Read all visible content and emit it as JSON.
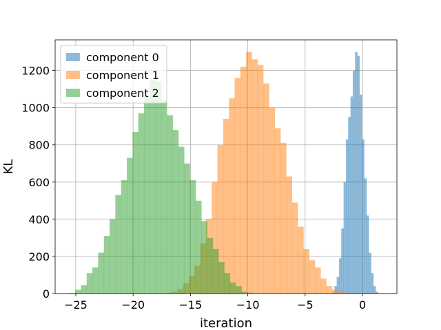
{
  "chart_data": {
    "type": "histogram",
    "title": "",
    "xlabel": "iteration",
    "ylabel": "KL",
    "xlim": [
      -26.8,
      3.0
    ],
    "ylim": [
      0,
      1365
    ],
    "xticks": [
      -25,
      -20,
      -15,
      -10,
      -5,
      0
    ],
    "xtick_labels": [
      "−25",
      "−20",
      "−15",
      "−10",
      "−5",
      "0"
    ],
    "yticks": [
      0,
      200,
      400,
      600,
      800,
      1000,
      1200
    ],
    "ytick_labels": [
      "0",
      "200",
      "400",
      "600",
      "800",
      "1000",
      "1200"
    ],
    "grid": true,
    "legend_position": "top-left",
    "series": [
      {
        "name": "component 0",
        "color": "#1f77b4",
        "bin_start": -2.65,
        "bin_width": 0.2,
        "counts": [
          5,
          40,
          90,
          190,
          350,
          600,
          830,
          950,
          1060,
          1200,
          1300,
          1280,
          1070,
          830,
          620,
          420,
          220,
          110,
          40,
          10
        ]
      },
      {
        "name": "component 1",
        "color": "#ff7f0e",
        "bin_start": -17.15,
        "bin_width": 0.5,
        "counts": [
          5,
          10,
          25,
          55,
          95,
          150,
          270,
          400,
          600,
          800,
          940,
          1050,
          1160,
          1220,
          1300,
          1260,
          1230,
          1130,
          1000,
          890,
          810,
          630,
          490,
          360,
          240,
          180,
          140,
          80,
          40,
          20,
          10,
          5
        ]
      },
      {
        "name": "component 2",
        "color": "#2ca02c",
        "bin_start": -25.55,
        "bin_width": 0.5,
        "counts": [
          3,
          20,
          45,
          110,
          140,
          220,
          310,
          400,
          530,
          610,
          730,
          870,
          970,
          1060,
          1150,
          1140,
          1040,
          960,
          880,
          790,
          700,
          610,
          500,
          390,
          300,
          240,
          170,
          110,
          60,
          40,
          10,
          5
        ]
      }
    ]
  }
}
